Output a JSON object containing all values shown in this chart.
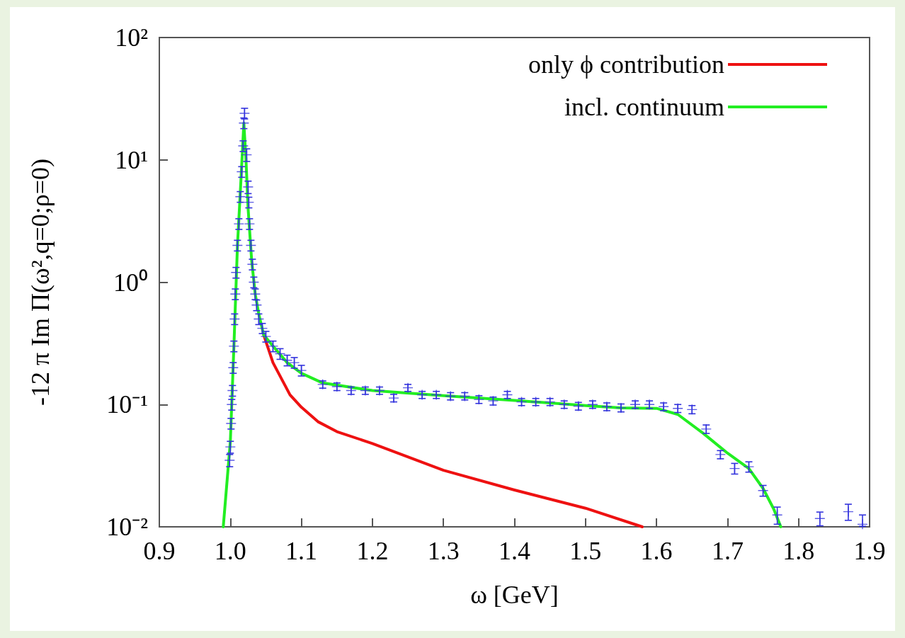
{
  "chart_data": {
    "type": "line",
    "xlabel": "ω [GeV]",
    "ylabel": "-12 π Im Π(ω²,q=0;ρ=0)",
    "log": "y",
    "grid": false,
    "legend": "top right",
    "line_style": "solid",
    "xlim": [
      0.9,
      1.9
    ],
    "xticks": [
      {
        "value": 0.9,
        "label": "0.9"
      },
      {
        "value": 1.0,
        "label": "1.0"
      },
      {
        "value": 1.1,
        "label": "1.1"
      },
      {
        "value": 1.2,
        "label": "1.2"
      },
      {
        "value": 1.3,
        "label": "1.3"
      },
      {
        "value": 1.4,
        "label": "1.4"
      },
      {
        "value": 1.5,
        "label": "1.5"
      },
      {
        "value": 1.6,
        "label": "1.6"
      },
      {
        "value": 1.7,
        "label": "1.7"
      },
      {
        "value": 1.8,
        "label": "1.8"
      },
      {
        "value": 1.9,
        "label": "1.9"
      }
    ],
    "ylim": [
      0.01,
      100
    ],
    "yticks": [
      {
        "value": 0.01,
        "label": "10⁻²"
      },
      {
        "value": 0.1,
        "label": "10⁻¹"
      },
      {
        "value": 1,
        "label": "10⁰"
      },
      {
        "value": 10,
        "label": "10¹"
      },
      {
        "value": 100,
        "label": "10²"
      }
    ],
    "series": [
      {
        "type": "scatter",
        "marker": "cross",
        "color": "#3333dd",
        "x": [
          0.999,
          1.0,
          1.001,
          1.002,
          1.003,
          1.004,
          1.005,
          1.006,
          1.007,
          1.008,
          1.01,
          1.012,
          1.014,
          1.016,
          1.018,
          1.019,
          1.02,
          1.023,
          1.025,
          1.026,
          1.027,
          1.029,
          1.031,
          1.033,
          1.035,
          1.037,
          1.04,
          1.045,
          1.05,
          1.06,
          1.07,
          1.08,
          1.09,
          1.1,
          1.13,
          1.15,
          1.17,
          1.19,
          1.21,
          1.23,
          1.25,
          1.27,
          1.29,
          1.31,
          1.33,
          1.35,
          1.37,
          1.39,
          1.41,
          1.43,
          1.45,
          1.47,
          1.49,
          1.51,
          1.53,
          1.55,
          1.57,
          1.59,
          1.61,
          1.63,
          1.65,
          1.67,
          1.69,
          1.71,
          1.73,
          1.75,
          1.77,
          1.83,
          1.87,
          1.89
        ],
        "values": [
          0.035,
          0.045,
          0.07,
          0.1,
          0.13,
          0.2,
          0.3,
          0.5,
          0.8,
          1.2,
          2,
          3,
          5,
          8,
          13,
          20,
          24,
          11,
          6,
          4.5,
          3,
          2,
          1.4,
          1,
          0.8,
          0.65,
          0.5,
          0.42,
          0.36,
          0.3,
          0.26,
          0.23,
          0.22,
          0.19,
          0.146,
          0.14,
          0.13,
          0.13,
          0.13,
          0.113,
          0.137,
          0.12,
          0.12,
          0.117,
          0.117,
          0.11,
          0.107,
          0.12,
          0.105,
          0.105,
          0.105,
          0.1,
          0.097,
          0.1,
          0.096,
          0.094,
          0.1,
          0.1,
          0.096,
          0.093,
          0.091,
          0.063,
          0.039,
          0.03,
          0.031,
          0.0198,
          0.0125,
          0.0117,
          0.0133,
          0.0105
        ],
        "errors": [
          0.004,
          0.005,
          0.007,
          0.01,
          0.013,
          0.02,
          0.03,
          0.05,
          0.08,
          0.12,
          0.2,
          0.3,
          0.5,
          0.8,
          1.3,
          2,
          2.4,
          1.3,
          0.7,
          0.45,
          0.3,
          0.2,
          0.14,
          0.1,
          0.08,
          0.065,
          0.05,
          0.04,
          0.036,
          0.03,
          0.026,
          0.023,
          0.022,
          0.019,
          0.01,
          0.01,
          0.009,
          0.009,
          0.009,
          0.008,
          0.009,
          0.008,
          0.008,
          0.008,
          0.008,
          0.008,
          0.008,
          0.008,
          0.007,
          0.007,
          0.007,
          0.007,
          0.007,
          0.007,
          0.007,
          0.007,
          0.007,
          0.007,
          0.007,
          0.007,
          0.007,
          0.005,
          0.003,
          0.003,
          0.003,
          0.002,
          0.002,
          0.0015,
          0.002,
          [
            0.0101,
            0.0125
          ]
        ]
      },
      {
        "name": "only ϕ contribution",
        "color": "#ee1111",
        "x": [
          1.047,
          1.06,
          1.084,
          1.1,
          1.124,
          1.15,
          1.2,
          1.3,
          1.4,
          1.5,
          1.58
        ],
        "values": [
          0.37,
          0.22,
          0.12,
          0.095,
          0.072,
          0.06,
          0.048,
          0.029,
          0.02,
          0.0142,
          0.01
        ]
      },
      {
        "name": "incl. continuum",
        "color": "#22ee22",
        "x": [
          0.99,
          1.0,
          1.005,
          1.01,
          1.015,
          1.019,
          1.022,
          1.025,
          1.03,
          1.035,
          1.04,
          1.047,
          1.06,
          1.08,
          1.1,
          1.13,
          1.2,
          1.3,
          1.4,
          1.5,
          1.55,
          1.6,
          1.63,
          1.666,
          1.7,
          1.73,
          1.75,
          1.765,
          1.775
        ],
        "values": [
          0.01,
          0.05,
          0.3,
          2,
          7,
          20,
          10,
          4,
          1.5,
          0.8,
          0.55,
          0.37,
          0.3,
          0.22,
          0.18,
          0.15,
          0.13,
          0.118,
          0.108,
          0.098,
          0.094,
          0.093,
          0.083,
          0.058,
          0.04,
          0.03,
          0.0206,
          0.014,
          0.01
        ]
      }
    ]
  }
}
